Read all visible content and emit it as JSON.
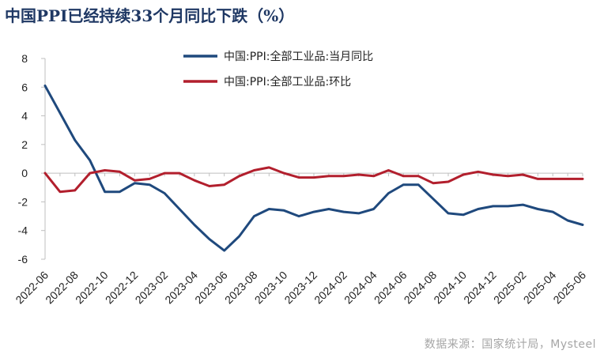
{
  "chart_data": {
    "type": "line",
    "title": "中国PPI已经持续33个月同比下跌（%）",
    "source": "数据来源：国家统计局，Mysteel",
    "ylim": [
      -6,
      8
    ],
    "yticks": [
      8,
      6,
      4,
      2,
      0,
      -2,
      -4,
      -6
    ],
    "x": [
      "2022-06",
      "2022-07",
      "2022-08",
      "2022-09",
      "2022-10",
      "2022-11",
      "2022-12",
      "2023-01",
      "2023-02",
      "2023-03",
      "2023-04",
      "2023-05",
      "2023-06",
      "2023-07",
      "2023-08",
      "2023-09",
      "2023-10",
      "2023-11",
      "2023-12",
      "2024-01",
      "2024-02",
      "2024-03",
      "2024-04",
      "2024-05",
      "2024-06",
      "2024-07",
      "2024-08",
      "2024-09",
      "2024-10",
      "2024-11",
      "2024-12",
      "2025-01",
      "2025-02",
      "2025-03",
      "2025-04",
      "2025-05",
      "2025-06"
    ],
    "xtick_labels": [
      "2022-06",
      "2022-08",
      "2022-10",
      "2022-12",
      "2023-02",
      "2023-04",
      "2023-06",
      "2023-08",
      "2023-10",
      "2023-12",
      "2024-02",
      "2024-04",
      "2024-06",
      "2024-08",
      "2024-10",
      "2024-12",
      "2025-02",
      "2025-04",
      "2025-06"
    ],
    "series": [
      {
        "name": "中国:PPI:全部工业品:当月同比",
        "color": "#1f497d",
        "values": [
          6.1,
          4.2,
          2.3,
          0.9,
          -1.3,
          -1.3,
          -0.7,
          -0.8,
          -1.4,
          -2.5,
          -3.6,
          -4.6,
          -5.4,
          -4.4,
          -3.0,
          -2.5,
          -2.6,
          -3.0,
          -2.7,
          -2.5,
          -2.7,
          -2.8,
          -2.5,
          -1.4,
          -0.8,
          -0.8,
          -1.8,
          -2.8,
          -2.9,
          -2.5,
          -2.3,
          -2.3,
          -2.2,
          -2.5,
          -2.7,
          -3.3,
          -3.6
        ]
      },
      {
        "name": "中国:PPI:全部工业品:环比",
        "color": "#b21f2d",
        "values": [
          0.0,
          -1.3,
          -1.2,
          0.0,
          0.2,
          0.1,
          -0.5,
          -0.4,
          0.0,
          0.0,
          -0.5,
          -0.9,
          -0.8,
          -0.2,
          0.2,
          0.4,
          0.0,
          -0.3,
          -0.3,
          -0.2,
          -0.2,
          -0.1,
          -0.2,
          0.2,
          -0.2,
          -0.2,
          -0.7,
          -0.6,
          -0.1,
          0.1,
          -0.1,
          -0.2,
          -0.1,
          -0.4,
          -0.4,
          -0.4,
          -0.4
        ]
      }
    ]
  }
}
